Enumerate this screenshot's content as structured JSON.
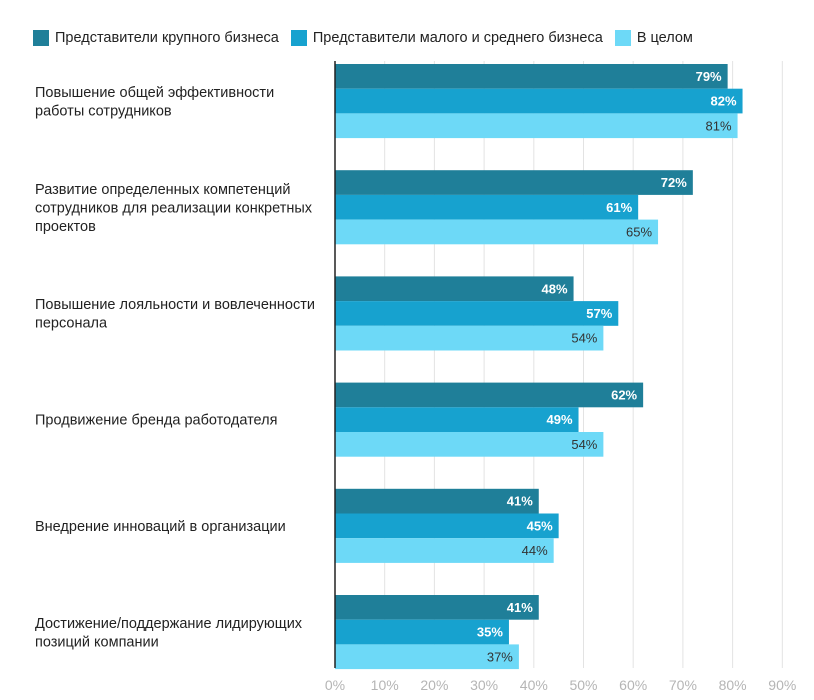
{
  "chart_data": {
    "type": "bar",
    "orientation": "horizontal",
    "categories": [
      [
        "Повышение общей эффективности",
        "работы сотрудников"
      ],
      [
        "Развитие определенных компетенций",
        "сотрудников для реализации конкретных",
        "проектов"
      ],
      [
        "Повышение лояльности и вовлеченности",
        "персонала"
      ],
      [
        "Продвижение бренда работодателя"
      ],
      [
        "Внедрение инноваций в организации"
      ],
      [
        "Достижение/поддержание лидирующих",
        "позиций компании"
      ]
    ],
    "series": [
      {
        "name": "Представители крупного бизнеса",
        "color": "#1f7f99",
        "label_color": "#ffffff",
        "values": [
          79,
          72,
          48,
          62,
          41,
          41
        ]
      },
      {
        "name": "Представители малого и среднего бизнеса",
        "color": "#17a2cf",
        "label_color": "#ffffff",
        "values": [
          82,
          61,
          57,
          49,
          45,
          35
        ]
      },
      {
        "name": "В целом",
        "color": "#6dd9f7",
        "label_color": "#333333",
        "values": [
          81,
          65,
          54,
          54,
          44,
          37
        ]
      }
    ],
    "value_suffix": "%",
    "xlim": [
      0,
      90
    ],
    "xticks": [
      "0%",
      "10%",
      "20%",
      "30%",
      "40%",
      "50%",
      "60%",
      "70%",
      "80%",
      "90%"
    ],
    "grid": true,
    "legend_position": "top-left"
  }
}
